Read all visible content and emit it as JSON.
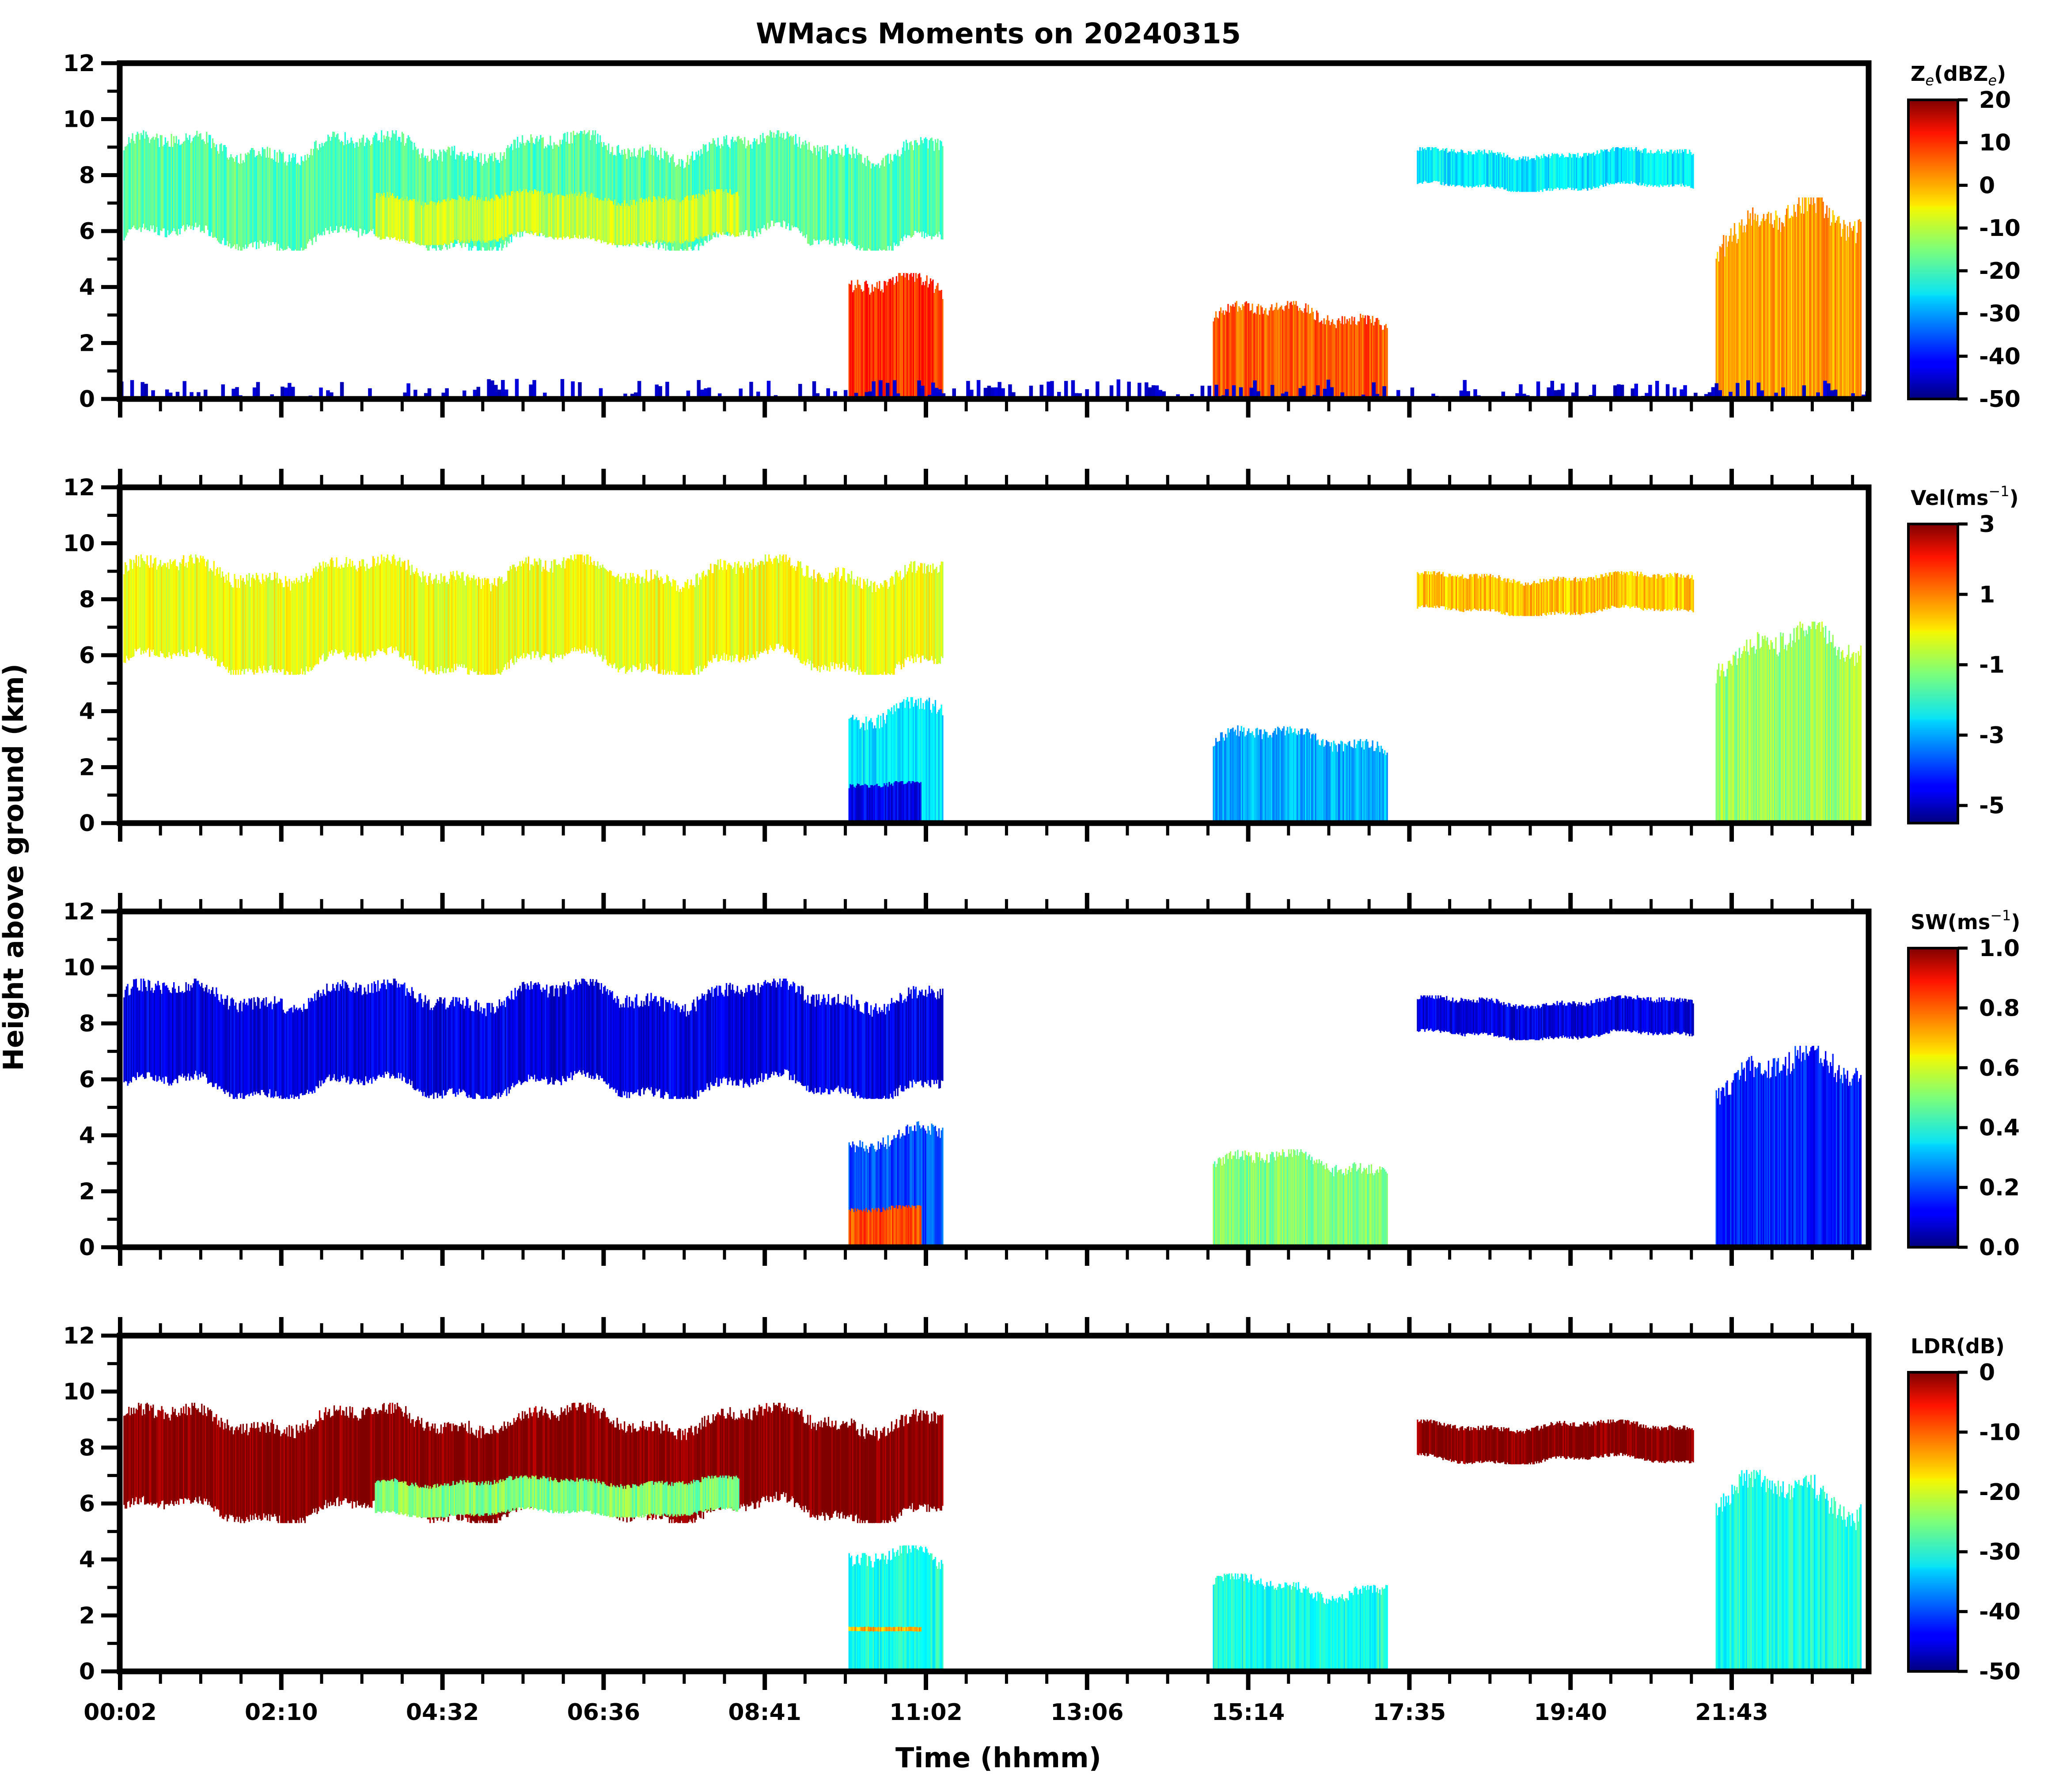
{
  "figure": {
    "title": "WMacs Moments on 20240315",
    "xlabel": "Time (hhmm)",
    "ylabel": "Height above ground (km)"
  },
  "chart_data": [
    {
      "type": "heatmap",
      "panel": "reflectivity",
      "title": "WMacs Moments on 20240315",
      "xlabel": "",
      "ylabel": "Height above ground (km)",
      "x_tick_labels": [],
      "y_ticks": [
        0,
        2,
        4,
        6,
        8,
        10,
        12
      ],
      "ylim": [
        0,
        12
      ],
      "colorbar": {
        "label": "Z",
        "label_sub": "e",
        "label_rest": "(dBZ",
        "label_sub2": "e",
        "label_end": ")",
        "range": [
          -50,
          20
        ],
        "ticks": [
          20,
          10,
          0,
          -10,
          -20,
          -30,
          -40,
          -50
        ],
        "colormap": "jet"
      },
      "features": [
        {
          "desc": "mid-level cloud deck",
          "t": [
            0.05,
            11.3
          ],
          "z": [
            5.3,
            9.6
          ],
          "value": -18
        },
        {
          "desc": "mid-level cloud core",
          "t": [
            3.5,
            8.5
          ],
          "z": [
            5.5,
            7.5
          ],
          "value": -10
        },
        {
          "desc": "precipitation shaft",
          "t": [
            10.0,
            11.3
          ],
          "z": [
            0,
            4.5
          ],
          "value": 8
        },
        {
          "desc": "convective cells",
          "t": [
            15.0,
            17.4
          ],
          "z": [
            0,
            3.5
          ],
          "value": 5
        },
        {
          "desc": "upper cloud",
          "t": [
            17.8,
            21.6
          ],
          "z": [
            7.4,
            9.0
          ],
          "value": -25
        },
        {
          "desc": "late-day precipitation",
          "t": [
            21.9,
            23.9
          ],
          "z": [
            0,
            7.2
          ],
          "value": 0
        },
        {
          "desc": "ground clutter",
          "t": [
            0,
            24
          ],
          "z": [
            0,
            0.8
          ],
          "value": -45
        }
      ]
    },
    {
      "type": "heatmap",
      "panel": "velocity",
      "ylabel": "Height above ground (km)",
      "y_ticks": [
        0,
        2,
        4,
        6,
        8,
        10,
        12
      ],
      "ylim": [
        0,
        12
      ],
      "colorbar": {
        "label": "Vel(ms",
        "label_sup": "−1",
        "label_end": ")",
        "range": [
          -5.5,
          3
        ],
        "ticks": [
          3,
          1,
          -1,
          -3,
          -5
        ],
        "colormap": "jet"
      },
      "features": [
        {
          "desc": "mid-level cloud deck",
          "t": [
            0.05,
            11.3
          ],
          "z": [
            5.3,
            9.6
          ],
          "value": -0.3
        },
        {
          "desc": "precipitation shaft",
          "t": [
            10.0,
            11.3
          ],
          "z": [
            0,
            4.5
          ],
          "value": -2.5
        },
        {
          "desc": "below-melting-layer fall speed",
          "t": [
            10.0,
            11.0
          ],
          "z": [
            0,
            1.5
          ],
          "value": -4.5
        },
        {
          "desc": "convective cells",
          "t": [
            15.0,
            17.4
          ],
          "z": [
            0,
            3.5
          ],
          "value": -3
        },
        {
          "desc": "upper cloud",
          "t": [
            17.8,
            21.6
          ],
          "z": [
            7.4,
            9.0
          ],
          "value": 0.3
        },
        {
          "desc": "late-day precipitation",
          "t": [
            21.9,
            23.9
          ],
          "z": [
            0,
            7.2
          ],
          "value": -1
        }
      ]
    },
    {
      "type": "heatmap",
      "panel": "spectrum_width",
      "ylabel": "Height above ground (km)",
      "y_ticks": [
        0,
        2,
        4,
        6,
        8,
        10,
        12
      ],
      "ylim": [
        0,
        12
      ],
      "colorbar": {
        "label": "SW(ms",
        "label_sup": "−1",
        "label_end": ")",
        "range": [
          0,
          1
        ],
        "ticks": [
          "1.0",
          "0.8",
          "0.6",
          "0.4",
          "0.2",
          "0.0"
        ],
        "colormap": "jet"
      },
      "features": [
        {
          "desc": "mid-level cloud deck",
          "t": [
            0.05,
            11.3
          ],
          "z": [
            5.3,
            9.6
          ],
          "value": 0.1
        },
        {
          "desc": "precipitation shaft",
          "t": [
            10.0,
            11.3
          ],
          "z": [
            0,
            4.5
          ],
          "value": 0.2
        },
        {
          "desc": "rain below melting layer",
          "t": [
            10.0,
            11.0
          ],
          "z": [
            0,
            1.5
          ],
          "value": 0.8
        },
        {
          "desc": "convective cells",
          "t": [
            15.0,
            17.4
          ],
          "z": [
            0,
            3.5
          ],
          "value": 0.5
        },
        {
          "desc": "upper cloud",
          "t": [
            17.8,
            21.6
          ],
          "z": [
            7.4,
            9.0
          ],
          "value": 0.1
        },
        {
          "desc": "late-day precipitation",
          "t": [
            21.9,
            23.9
          ],
          "z": [
            0,
            7.2
          ],
          "value": 0.15
        }
      ]
    },
    {
      "type": "heatmap",
      "panel": "ldr",
      "xlabel": "Time (hhmm)",
      "ylabel": "Height above ground (km)",
      "x_tick_labels": [
        "00:02",
        "02:10",
        "04:32",
        "06:36",
        "08:41",
        "11:02",
        "13:06",
        "15:14",
        "17:35",
        "19:40",
        "21:43"
      ],
      "y_ticks": [
        0,
        2,
        4,
        6,
        8,
        10,
        12
      ],
      "ylim": [
        0,
        12
      ],
      "colorbar": {
        "label": "LDR(dB)",
        "range": [
          -50,
          0
        ],
        "ticks": [
          0,
          -10,
          -20,
          -30,
          -40,
          -50
        ],
        "colormap": "jet"
      },
      "features": [
        {
          "desc": "mid-level cloud deck",
          "t": [
            0.05,
            11.3
          ],
          "z": [
            5.3,
            9.6
          ],
          "value": 0
        },
        {
          "desc": "ice core",
          "t": [
            3.5,
            8.5
          ],
          "z": [
            5.5,
            7.0
          ],
          "value": -25
        },
        {
          "desc": "precipitation shaft",
          "t": [
            10.0,
            11.3
          ],
          "z": [
            0,
            4.5
          ],
          "value": -30
        },
        {
          "desc": "melting layer",
          "t": [
            10.0,
            11.0
          ],
          "z": [
            1.4,
            1.6
          ],
          "value": -15
        },
        {
          "desc": "convective cells",
          "t": [
            15.0,
            17.4
          ],
          "z": [
            0,
            3.5
          ],
          "value": -30
        },
        {
          "desc": "upper cloud",
          "t": [
            17.8,
            21.6
          ],
          "z": [
            7.4,
            9.0
          ],
          "value": 0
        },
        {
          "desc": "late-day precipitation",
          "t": [
            21.9,
            23.9
          ],
          "z": [
            0,
            7.2
          ],
          "value": -30
        }
      ]
    }
  ]
}
